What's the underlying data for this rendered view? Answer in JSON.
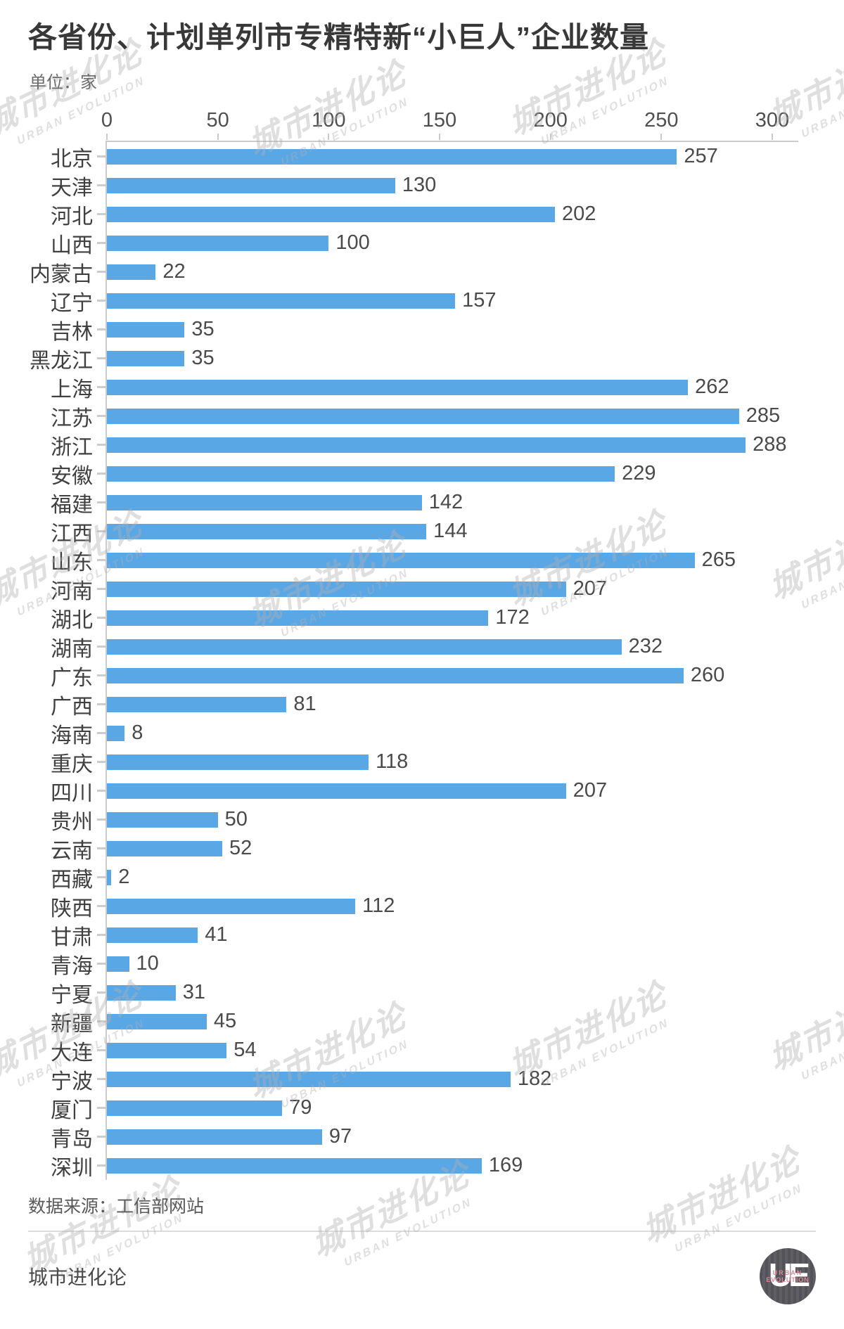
{
  "header": {
    "title": "各省份、计划单列市专精特新“小巨人”企业数量",
    "unit": "单位：家"
  },
  "chart_data": {
    "type": "bar",
    "orientation": "horizontal",
    "title": "各省份、计划单列市专精特新“小巨人”企业数量",
    "unit": "家",
    "xlim": [
      0,
      300
    ],
    "x_ticks": [
      0,
      50,
      100,
      150,
      200,
      250,
      300
    ],
    "grid": false,
    "categories": [
      "北京",
      "天津",
      "河北",
      "山西",
      "内蒙古",
      "辽宁",
      "吉林",
      "黑龙江",
      "上海",
      "江苏",
      "浙江",
      "安徽",
      "福建",
      "江西",
      "山东",
      "河南",
      "湖北",
      "湖南",
      "广东",
      "广西",
      "海南",
      "重庆",
      "四川",
      "贵州",
      "云南",
      "西藏",
      "陕西",
      "甘肃",
      "青海",
      "宁夏",
      "新疆",
      "大连",
      "宁波",
      "厦门",
      "青岛",
      "深圳"
    ],
    "values": [
      257,
      130,
      202,
      100,
      22,
      157,
      35,
      35,
      262,
      285,
      288,
      229,
      142,
      144,
      265,
      207,
      172,
      232,
      260,
      81,
      8,
      118,
      207,
      50,
      52,
      2,
      112,
      41,
      10,
      31,
      45,
      54,
      182,
      79,
      97,
      169
    ],
    "bar_color": "#5aa7e6"
  },
  "footer": {
    "source": "数据来源：工信部网站",
    "brand": "城市进化论"
  },
  "watermark": {
    "cn": "城市进化论",
    "en": "URBAN EVOLUTION"
  },
  "logo": {
    "monogram": "UE",
    "line1": "URBAN",
    "line2": "EVOLUTION"
  },
  "colors": {
    "bar": "#5aa7e6",
    "axis_line": "#cccccc",
    "title_text": "#383838",
    "label_text": "#404040",
    "logo_bg": "#55555a",
    "logo_accent": "#dc8897"
  }
}
